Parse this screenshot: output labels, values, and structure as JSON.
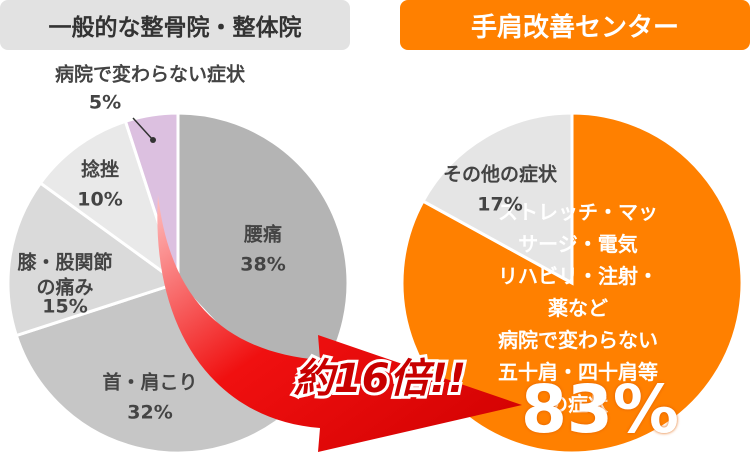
{
  "chart_data": [
    {
      "type": "pie",
      "title": "一般的な整骨院・整体院",
      "categories": [
        "腰痛",
        "首・肩こり",
        "膝・股関節\nの痛み",
        "捻挫",
        "病院で変わらない症状"
      ],
      "values": [
        38,
        32,
        15,
        10,
        5
      ],
      "value_labels": [
        "38%",
        "32%",
        "15%",
        "10%",
        "5%"
      ],
      "colors": [
        "#b4b4b4",
        "#c6c6c6",
        "#dadada",
        "#e9e9e9",
        "#dcc0e0"
      ]
    },
    {
      "type": "pie",
      "title": "手肩改善センター",
      "categories": [
        "ストレッチ・マッサージ・電気\nリハビリ・注射・薬など\n病院で変わらない\n五十肩・四十肩等の症状",
        "その他の症状"
      ],
      "values": [
        83,
        17
      ],
      "value_labels": [
        "83%",
        "17%"
      ],
      "colors": [
        "#ff8000",
        "#e5e5e5"
      ],
      "annotation": "約16倍!!"
    }
  ]
}
